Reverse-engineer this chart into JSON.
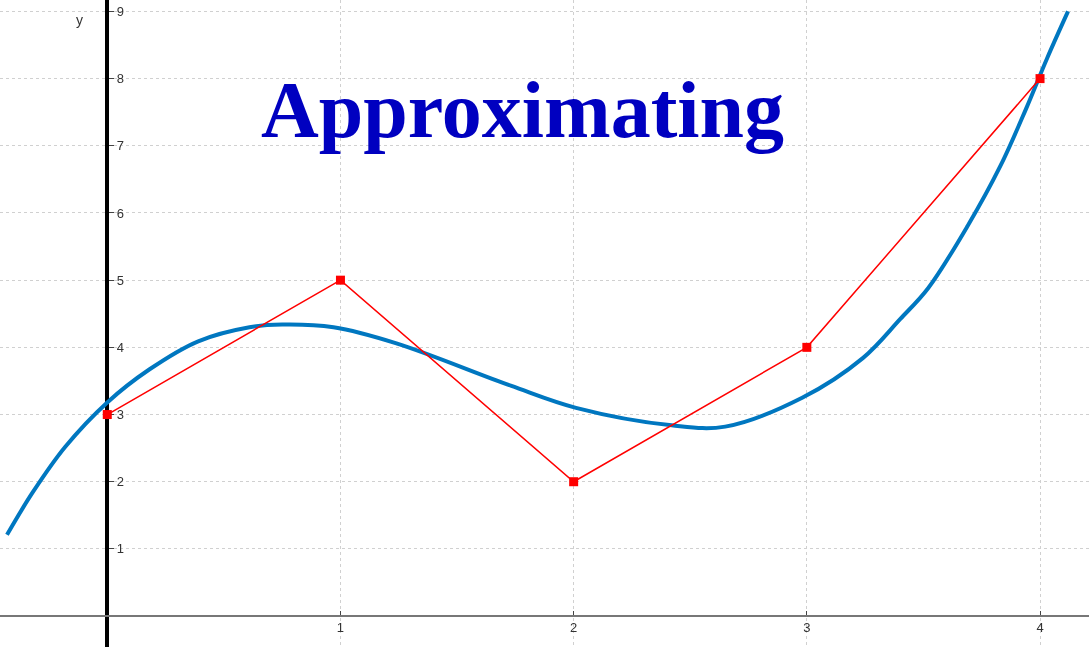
{
  "chart_data": {
    "type": "line",
    "title": "Approximating",
    "ylabel": "y",
    "xlim": [
      -0.46,
      4.21
    ],
    "ylim": [
      -0.46,
      9.17
    ],
    "xticks": [
      1,
      2,
      3,
      4
    ],
    "yticks": [
      1,
      2,
      3,
      4,
      5,
      6,
      7,
      8,
      9
    ],
    "grid": true,
    "series": [
      {
        "color": "#0077c0",
        "marker": "none",
        "x": [
          -0.43,
          -0.32,
          -0.18,
          0,
          0.18,
          0.39,
          0.61,
          0.75,
          0.97,
          1.24,
          1.73,
          2.01,
          2.42,
          2.65,
          2.98,
          3.24,
          3.4,
          3.52,
          3.69,
          3.83,
          3.94,
          4.03,
          4.12
        ],
        "values": [
          1.21,
          1.84,
          2.52,
          3.18,
          3.67,
          4.09,
          4.3,
          4.34,
          4.3,
          4.06,
          3.43,
          3.1,
          2.84,
          2.82,
          3.25,
          3.84,
          4.42,
          4.88,
          5.81,
          6.7,
          7.55,
          8.3,
          9.0
        ]
      },
      {
        "color": "#ff0000",
        "marker": "square",
        "x": [
          0,
          1,
          2,
          3,
          4
        ],
        "values": [
          3,
          5,
          2,
          4,
          8
        ]
      }
    ]
  }
}
